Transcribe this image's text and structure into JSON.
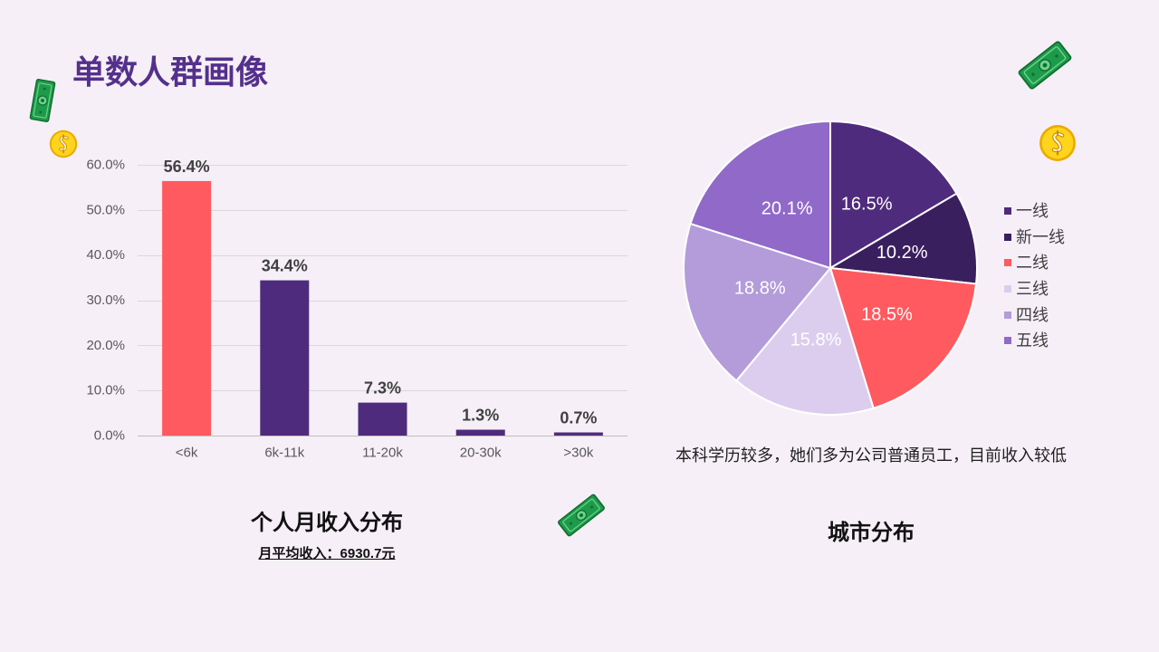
{
  "page": {
    "title": "单数人群画像"
  },
  "decorations": {
    "banknote": "banknote-icon",
    "coin": "coin-icon"
  },
  "chart_data": [
    {
      "type": "bar",
      "title": "个人月收入分布",
      "subtitle": "月平均收入：6930.7元",
      "categories": [
        "<6k",
        "6k-11k",
        "11-20k",
        "20-30k",
        ">30k"
      ],
      "values": [
        56.4,
        34.4,
        7.3,
        1.3,
        0.7
      ],
      "data_labels": [
        "56.4%",
        "34.4%",
        "7.3%",
        "1.3%",
        "0.7%"
      ],
      "colors": [
        "#FF5A5F",
        "#4F2B7D",
        "#4F2B7D",
        "#4F2B7D",
        "#4F2B7D"
      ],
      "ylim": [
        0,
        60
      ],
      "yticks": [
        0,
        10,
        20,
        30,
        40,
        50,
        60
      ],
      "ytick_labels": [
        "0.0%",
        "10.0%",
        "20.0%",
        "30.0%",
        "40.0%",
        "50.0%",
        "60.0%"
      ],
      "grid": true
    },
    {
      "type": "pie",
      "title": "城市分布",
      "categories": [
        "一线",
        "新一线",
        "二线",
        "三线",
        "四线",
        "五线"
      ],
      "values": [
        16.5,
        10.2,
        18.5,
        15.8,
        18.8,
        20.1
      ],
      "data_labels": [
        "16.5%",
        "10.2%",
        "18.5%",
        "15.8%",
        "18.8%",
        "20.1%"
      ],
      "colors": [
        "#4F2B7E",
        "#3A1F5E",
        "#FF5A5F",
        "#DCCDEE",
        "#B49BDA",
        "#9069C9"
      ],
      "legend": "right",
      "annotations": [
        "本科学历较多，她们多为公司普通员工，目前收入较低"
      ]
    }
  ]
}
